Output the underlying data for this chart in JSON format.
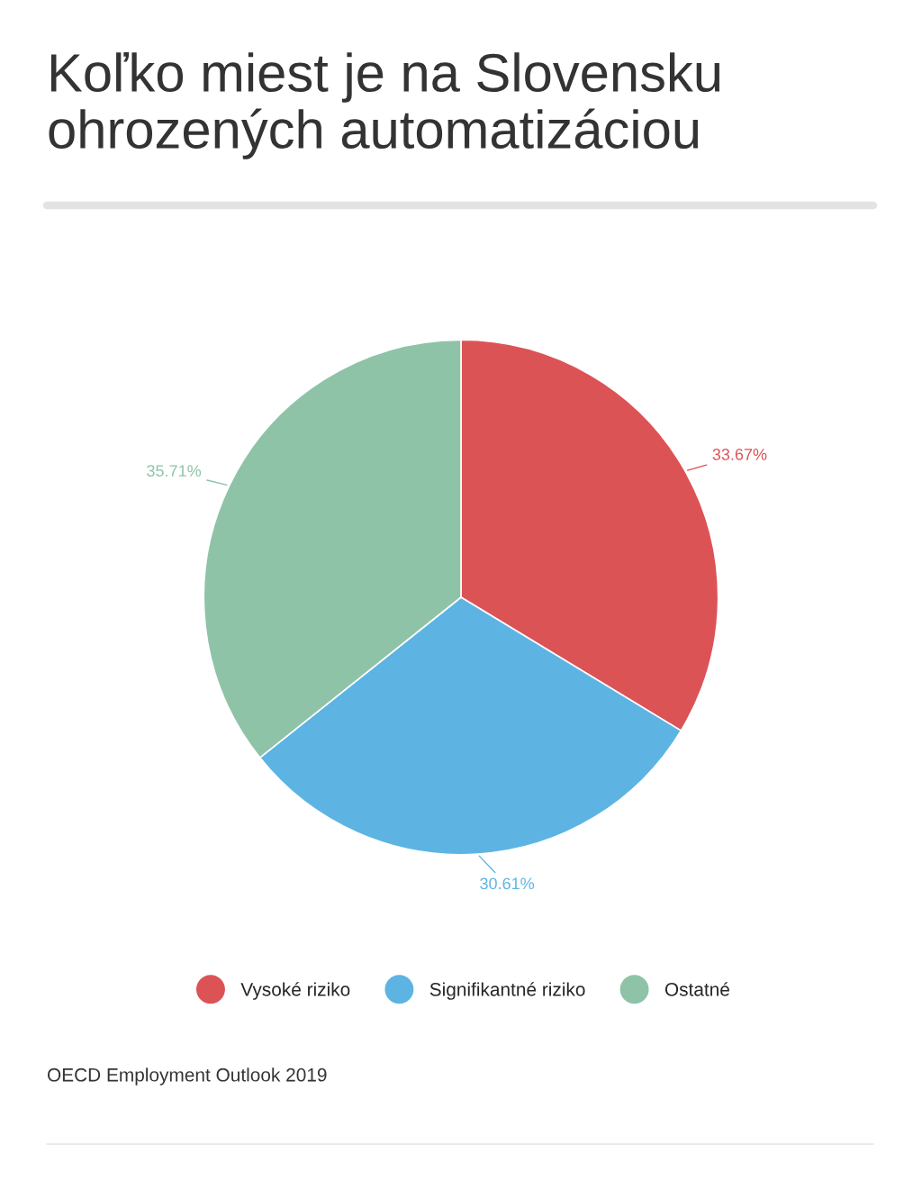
{
  "chart_data": {
    "type": "pie",
    "title": "Koľko miest je na Slovensku ohrozených automatizáciou",
    "categories": [
      "Vysoké riziko",
      "Signifikantné riziko",
      "Ostatné"
    ],
    "values": [
      33.67,
      30.61,
      35.71
    ],
    "colors": [
      "#dc5356",
      "#5db4e3",
      "#8ec3a7"
    ],
    "value_labels": [
      "33.67%",
      "30.61%",
      "35.71%"
    ],
    "legend": "bottom",
    "annotations": [
      "OECD Employment Outlook 2019"
    ]
  }
}
